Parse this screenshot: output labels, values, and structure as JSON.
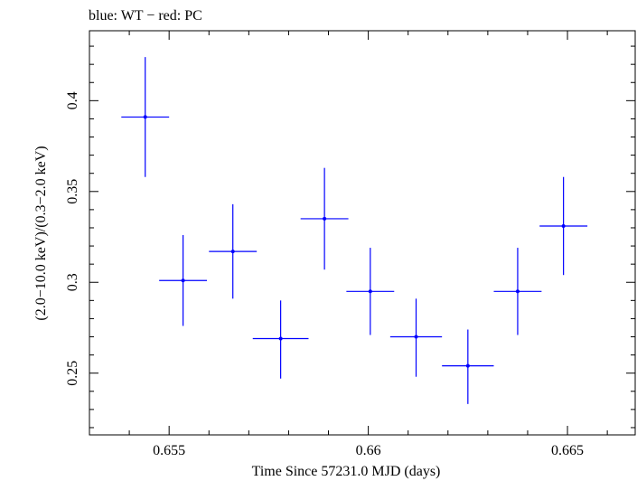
{
  "chart_data": {
    "type": "scatter",
    "title": "blue: WT − red: PC",
    "xlabel": "Time Since 57231.0 MJD (days)",
    "ylabel": "(2.0−10.0 keV)/(0.3−2.0 keV)",
    "xlim": [
      0.653,
      0.6667
    ],
    "ylim": [
      0.216,
      0.4385
    ],
    "x_ticks": [
      0.655,
      0.66,
      0.665
    ],
    "x_tick_labels": [
      "0.655",
      "0.66",
      "0.665"
    ],
    "y_ticks": [
      0.25,
      0.3,
      0.35,
      0.4
    ],
    "y_tick_labels": [
      "0.25",
      "0.3",
      "0.35",
      "0.4"
    ],
    "grid": false,
    "colors": {
      "WT": "#0000ff",
      "axes": "#000000"
    },
    "series": [
      {
        "name": "WT",
        "color": "#0000ff",
        "points": [
          {
            "x": 0.6544,
            "xerr": 0.0006,
            "y": 0.391,
            "yerr_low": 0.033,
            "yerr_high": 0.033
          },
          {
            "x": 0.65535,
            "xerr": 0.0006,
            "y": 0.301,
            "yerr_low": 0.025,
            "yerr_high": 0.025
          },
          {
            "x": 0.6566,
            "xerr": 0.0006,
            "y": 0.317,
            "yerr_low": 0.026,
            "yerr_high": 0.026
          },
          {
            "x": 0.6578,
            "xerr": 0.0007,
            "y": 0.269,
            "yerr_low": 0.022,
            "yerr_high": 0.021
          },
          {
            "x": 0.6589,
            "xerr": 0.0006,
            "y": 0.335,
            "yerr_low": 0.028,
            "yerr_high": 0.028
          },
          {
            "x": 0.66005,
            "xerr": 0.0006,
            "y": 0.295,
            "yerr_low": 0.024,
            "yerr_high": 0.024
          },
          {
            "x": 0.6612,
            "xerr": 0.00065,
            "y": 0.27,
            "yerr_low": 0.022,
            "yerr_high": 0.021
          },
          {
            "x": 0.6625,
            "xerr": 0.00065,
            "y": 0.254,
            "yerr_low": 0.021,
            "yerr_high": 0.02
          },
          {
            "x": 0.66375,
            "xerr": 0.0006,
            "y": 0.295,
            "yerr_low": 0.024,
            "yerr_high": 0.024
          },
          {
            "x": 0.6649,
            "xerr": 0.0006,
            "y": 0.331,
            "yerr_low": 0.027,
            "yerr_high": 0.027
          }
        ]
      }
    ]
  }
}
